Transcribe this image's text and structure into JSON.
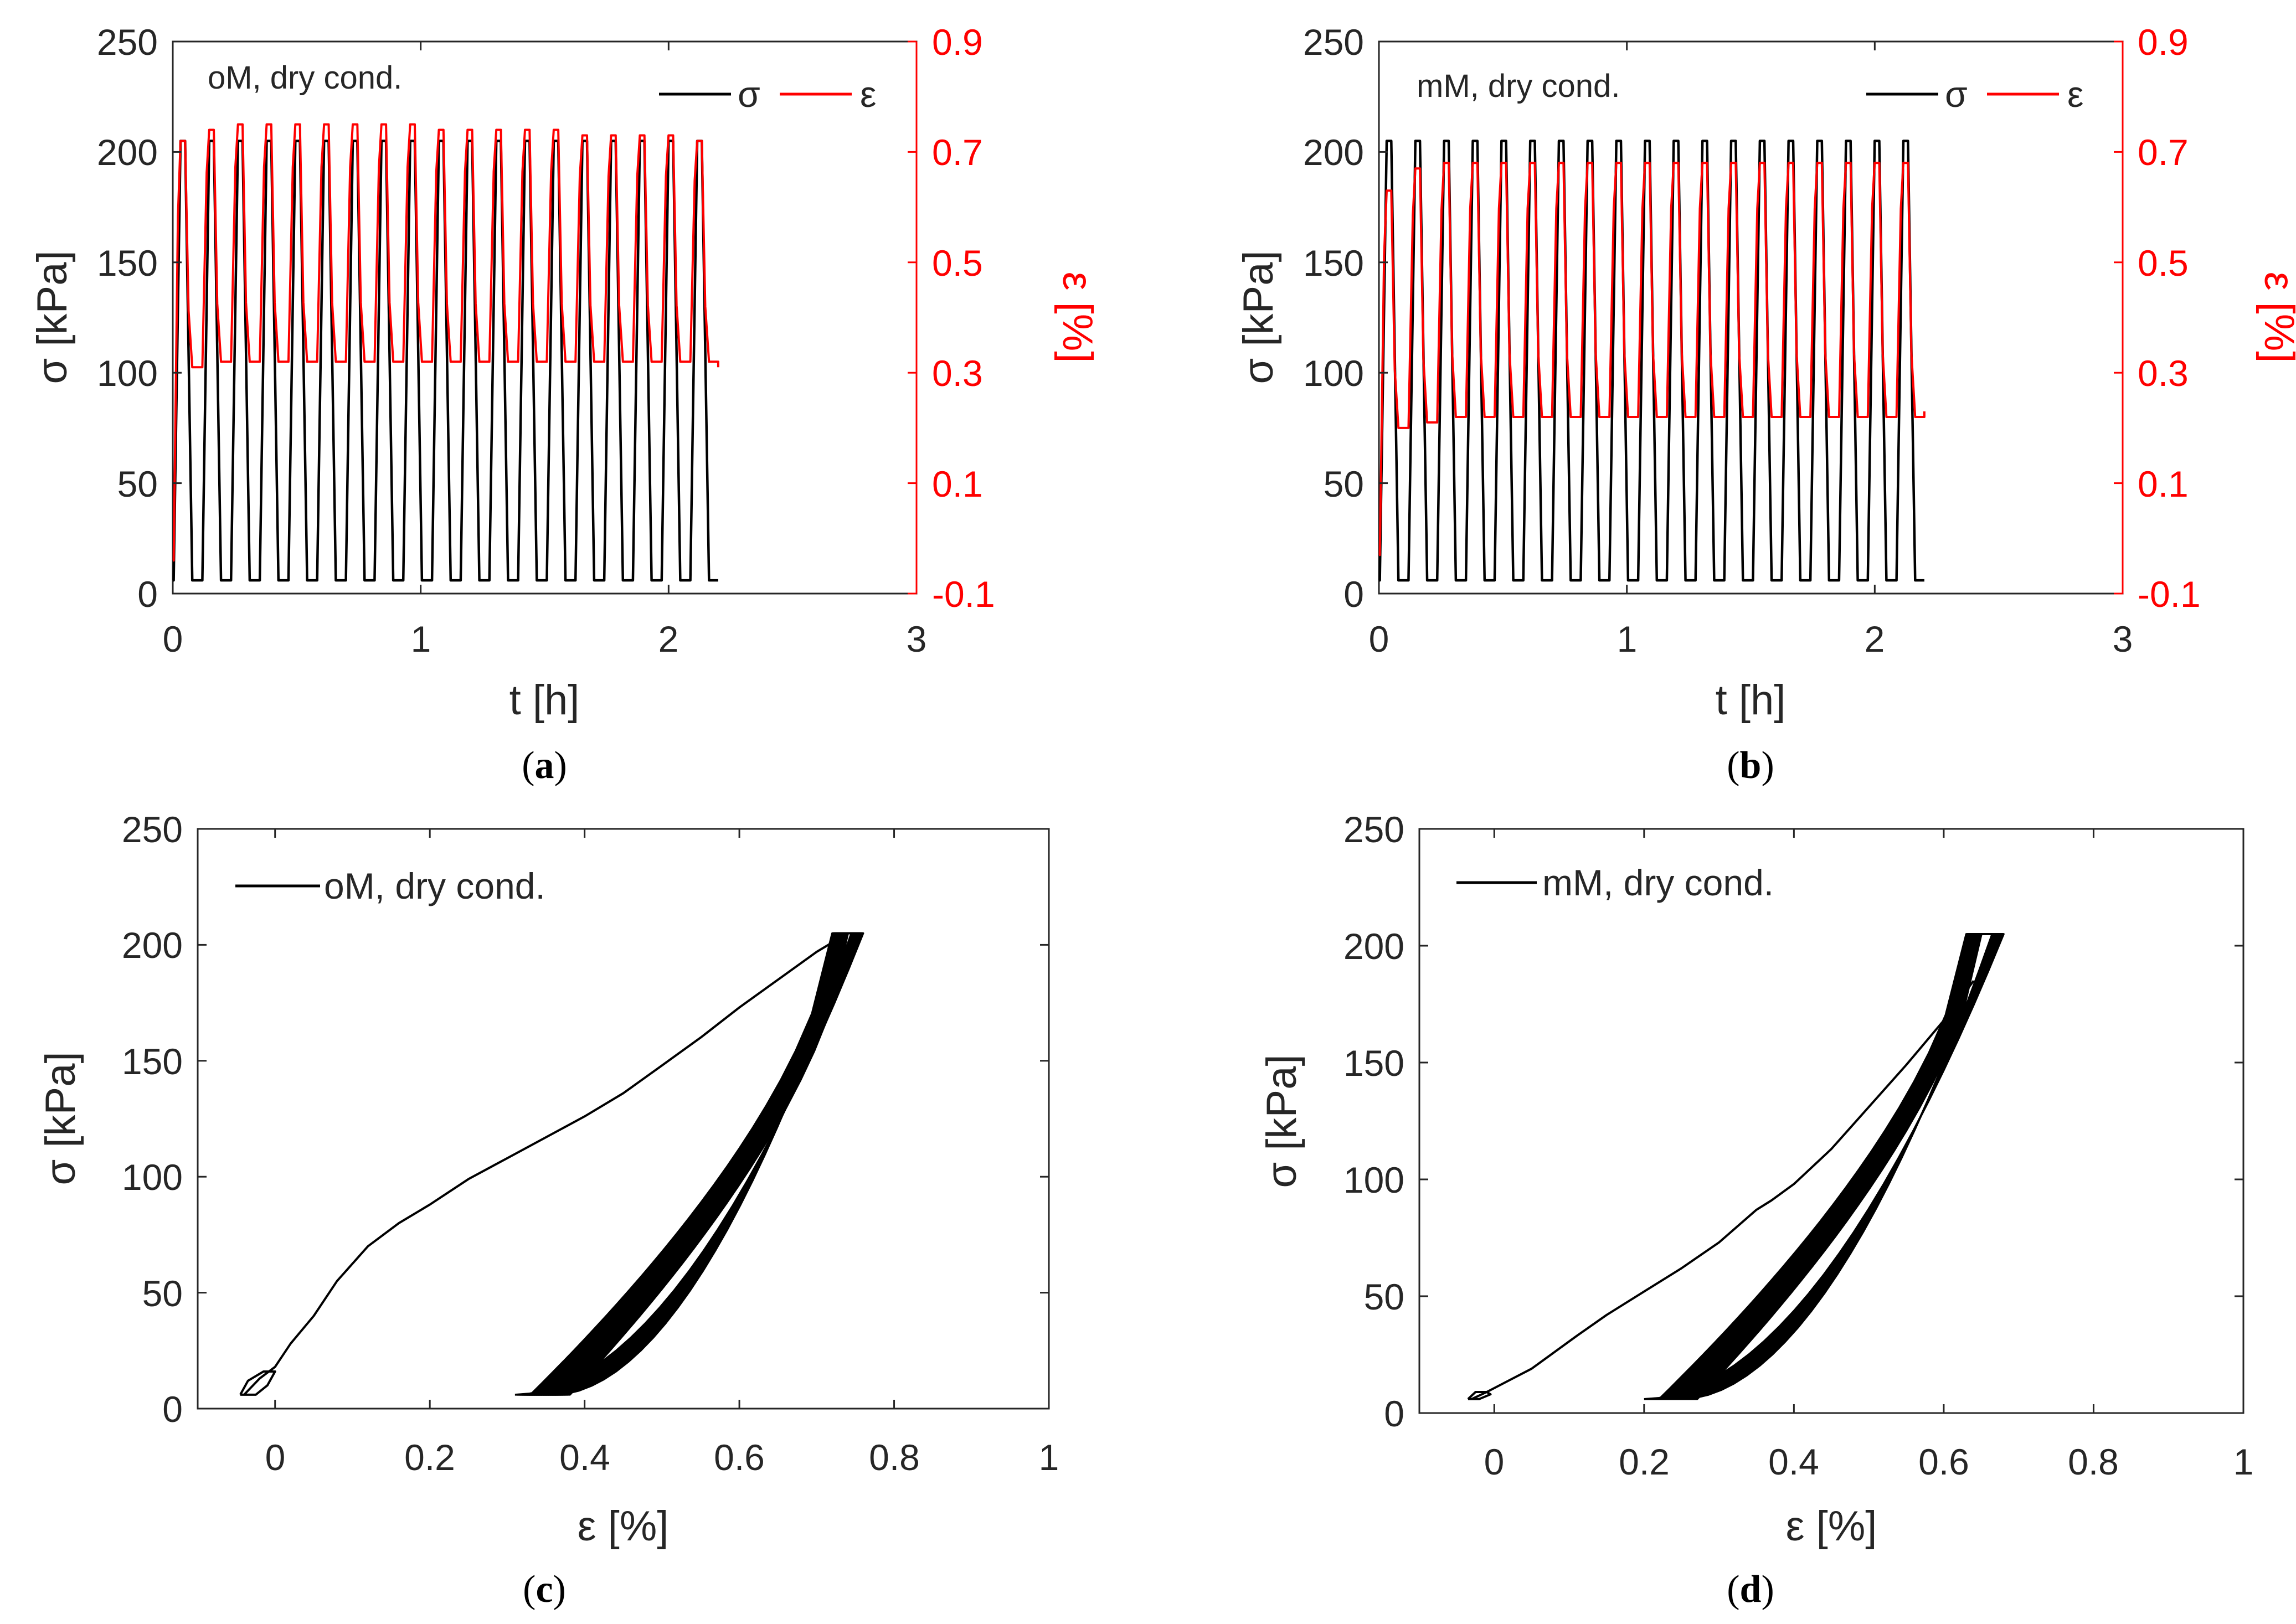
{
  "colors": {
    "stress": "#000000",
    "strain": "#ff0000",
    "axis": "#262626",
    "background": "#ffffff"
  },
  "chart_data": [
    {
      "id": "a",
      "type": "line",
      "caption_letter": "a",
      "title": "",
      "annotation": "oM, dry cond.",
      "xlabel": "t [h]",
      "ylabel": "σ [kPa]",
      "y2label": "ε [%]",
      "xlim": [
        0,
        3
      ],
      "ylim": [
        0,
        250
      ],
      "y2lim": [
        -0.1,
        0.9
      ],
      "xticks": [
        "0",
        "1",
        "2",
        "3"
      ],
      "yticks": [
        "0",
        "50",
        "100",
        "150",
        "200",
        "250"
      ],
      "y2ticks": [
        "-0.1",
        "0.1",
        "0.3",
        "0.5",
        "0.7",
        "0.9"
      ],
      "legend": [
        "σ",
        "ε"
      ],
      "series": [
        {
          "name": "σ",
          "axis": "left",
          "kind": "cyclic",
          "cycles": 19,
          "t_start": 0.0,
          "t_end": 2.2,
          "min": 6,
          "max": 205
        },
        {
          "name": "ε",
          "axis": "right",
          "kind": "cyclic",
          "cycles": 19,
          "t_start": 0.0,
          "t_end": 2.2,
          "initial": -0.04,
          "peaks": [
            0.72,
            0.74,
            0.75,
            0.75,
            0.75,
            0.75,
            0.75,
            0.75,
            0.75,
            0.74,
            0.74,
            0.74,
            0.74,
            0.74,
            0.73,
            0.73,
            0.73,
            0.73,
            0.72
          ],
          "valleys": [
            0.31,
            0.32,
            0.32,
            0.32,
            0.32,
            0.32,
            0.32,
            0.32,
            0.32,
            0.32,
            0.32,
            0.32,
            0.32,
            0.32,
            0.32,
            0.32,
            0.32,
            0.32,
            0.32
          ],
          "final": 0.31
        }
      ]
    },
    {
      "id": "b",
      "type": "line",
      "caption_letter": "b",
      "title": "",
      "annotation": "mM, dry cond.",
      "xlabel": "t [h]",
      "ylabel": "σ [kPa]",
      "y2label": "ε [%]",
      "xlim": [
        0,
        3
      ],
      "ylim": [
        0,
        250
      ],
      "y2lim": [
        -0.1,
        0.9
      ],
      "xticks": [
        "0",
        "1",
        "2",
        "3"
      ],
      "yticks": [
        "0",
        "50",
        "100",
        "150",
        "200",
        "250"
      ],
      "y2ticks": [
        "-0.1",
        "0.1",
        "0.3",
        "0.5",
        "0.7",
        "0.9"
      ],
      "legend": [
        "σ",
        "ε"
      ],
      "series": [
        {
          "name": "σ",
          "axis": "left",
          "kind": "cyclic",
          "cycles": 19,
          "t_start": 0.0,
          "t_end": 2.2,
          "min": 6,
          "max": 205
        },
        {
          "name": "ε",
          "axis": "right",
          "kind": "cyclic",
          "cycles": 19,
          "t_start": 0.0,
          "t_end": 2.2,
          "initial": -0.03,
          "peaks": [
            0.63,
            0.67,
            0.68,
            0.68,
            0.68,
            0.68,
            0.68,
            0.68,
            0.68,
            0.68,
            0.68,
            0.68,
            0.68,
            0.68,
            0.68,
            0.68,
            0.68,
            0.68,
            0.68
          ],
          "valleys": [
            0.2,
            0.21,
            0.22,
            0.22,
            0.22,
            0.22,
            0.22,
            0.22,
            0.22,
            0.22,
            0.22,
            0.22,
            0.22,
            0.22,
            0.22,
            0.22,
            0.22,
            0.22,
            0.22
          ],
          "final": 0.23
        }
      ]
    },
    {
      "id": "c",
      "type": "line",
      "caption_letter": "c",
      "title": "",
      "xlabel": "ε [%]",
      "ylabel": "σ [kPa]",
      "xlim": [
        -0.1,
        1
      ],
      "ylim": [
        0,
        250
      ],
      "xticks": [
        "0",
        "0.2",
        "0.4",
        "0.6",
        "0.8",
        "1"
      ],
      "yticks": [
        "0",
        "50",
        "100",
        "150",
        "200",
        "250"
      ],
      "legend": [
        "oM, dry cond."
      ],
      "series": [
        {
          "name": "oM, dry cond.",
          "kind": "loading",
          "x": [
            -0.04,
            -0.02,
            0.0,
            0.02,
            0.05,
            0.08,
            0.12,
            0.16,
            0.2,
            0.25,
            0.3,
            0.35,
            0.4,
            0.45,
            0.5,
            0.55,
            0.6,
            0.65,
            0.7,
            0.74
          ],
          "y": [
            6,
            13,
            18,
            28,
            40,
            55,
            70,
            80,
            88,
            99,
            108,
            117,
            126,
            136,
            148,
            160,
            173,
            185,
            197,
            205
          ]
        },
        {
          "name": "initial loop",
          "kind": "loop",
          "x": [
            -0.045,
            -0.035,
            -0.015,
            0.0,
            -0.01,
            -0.025,
            -0.045
          ],
          "y": [
            6,
            12,
            16,
            16,
            10,
            6,
            6
          ]
        },
        {
          "name": "hysteresis loops",
          "kind": "loops",
          "count": 18,
          "min": 6,
          "max": 205,
          "start_x": 0.31,
          "peak_x": 0.76,
          "x_shift": 0.003,
          "drop_x": 0.72
        }
      ]
    },
    {
      "id": "d",
      "type": "line",
      "caption_letter": "d",
      "title": "",
      "xlabel": "ε [%]",
      "ylabel": "σ [kPa]",
      "xlim": [
        -0.1,
        1
      ],
      "ylim": [
        0,
        250
      ],
      "xticks": [
        "0",
        "0.2",
        "0.4",
        "0.6",
        "0.8",
        "1"
      ],
      "yticks": [
        "0",
        "50",
        "100",
        "150",
        "200",
        "250"
      ],
      "legend": [
        "mM, dry cond."
      ],
      "series": [
        {
          "name": "mM, dry cond.",
          "kind": "loading",
          "x": [
            -0.03,
            -0.01,
            0.02,
            0.05,
            0.08,
            0.11,
            0.15,
            0.2,
            0.25,
            0.3,
            0.35,
            0.37,
            0.4,
            0.45,
            0.5,
            0.55,
            0.6,
            0.64
          ],
          "y": [
            6,
            9,
            14,
            19,
            26,
            33,
            42,
            52,
            62,
            73,
            87,
            91,
            98,
            113,
            131,
            149,
            168,
            185
          ]
        },
        {
          "name": "initial loop",
          "kind": "loop",
          "x": [
            -0.035,
            -0.025,
            -0.01,
            -0.005,
            -0.02,
            -0.035
          ],
          "y": [
            6,
            9,
            9,
            8,
            6,
            6
          ]
        },
        {
          "name": "hysteresis loops",
          "kind": "loops",
          "count": 18,
          "min": 6,
          "max": 205,
          "start_x": 0.2,
          "peak_x": 0.68,
          "x_shift": 0.003,
          "drop_x": 0.63
        }
      ]
    }
  ]
}
